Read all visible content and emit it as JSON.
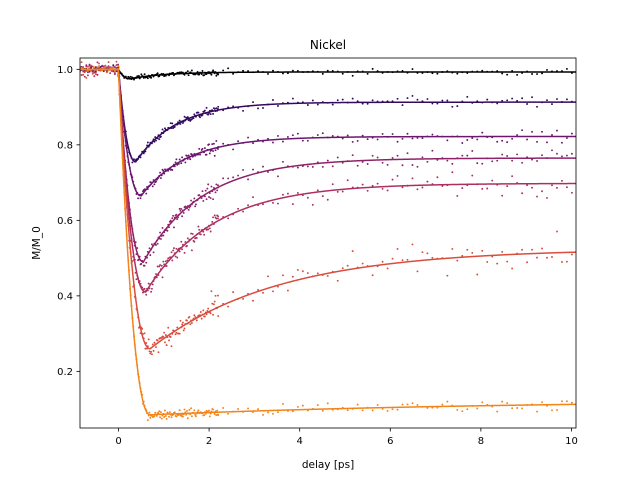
{
  "chart_data": {
    "type": "scatter",
    "title": "Nickel",
    "xlabel": "delay [ps]",
    "ylabel": "M/M_0",
    "xlim": [
      -0.85,
      10.1
    ],
    "ylim": [
      0.05,
      1.03
    ],
    "xticks": [
      0,
      2,
      4,
      6,
      8,
      10
    ],
    "yticks": [
      0.2,
      0.4,
      0.6,
      0.8,
      1.0
    ],
    "ytick_labels": [
      "0.2",
      "0.4",
      "0.6",
      "0.8",
      "1.0"
    ],
    "grid": false,
    "legend": "none",
    "series": [
      {
        "color": "#000004",
        "min_x": 0.25,
        "min_y": 0.975,
        "final_y": 0.993,
        "tau": 0.8,
        "noise": 0.004
      },
      {
        "color": "#320a5e",
        "min_x": 0.38,
        "min_y": 0.755,
        "final_y": 0.913,
        "tau": 0.9,
        "noise": 0.007
      },
      {
        "color": "#6b176e",
        "min_x": 0.5,
        "min_y": 0.665,
        "final_y": 0.822,
        "tau": 1.0,
        "noise": 0.008
      },
      {
        "color": "#8c2369",
        "min_x": 0.55,
        "min_y": 0.49,
        "final_y": 0.765,
        "tau": 1.3,
        "noise": 0.012
      },
      {
        "color": "#ab3060",
        "min_x": 0.6,
        "min_y": 0.41,
        "final_y": 0.698,
        "tau": 1.5,
        "noise": 0.014
      },
      {
        "color": "#d94d3d",
        "min_x": 0.7,
        "min_y": 0.26,
        "final_y": 0.525,
        "tau": 2.8,
        "noise": 0.018
      },
      {
        "color": "#f3841a",
        "min_x": 0.7,
        "min_y": 0.085,
        "final_y": 0.125,
        "tau": 8.0,
        "noise": 0.008
      }
    ]
  }
}
